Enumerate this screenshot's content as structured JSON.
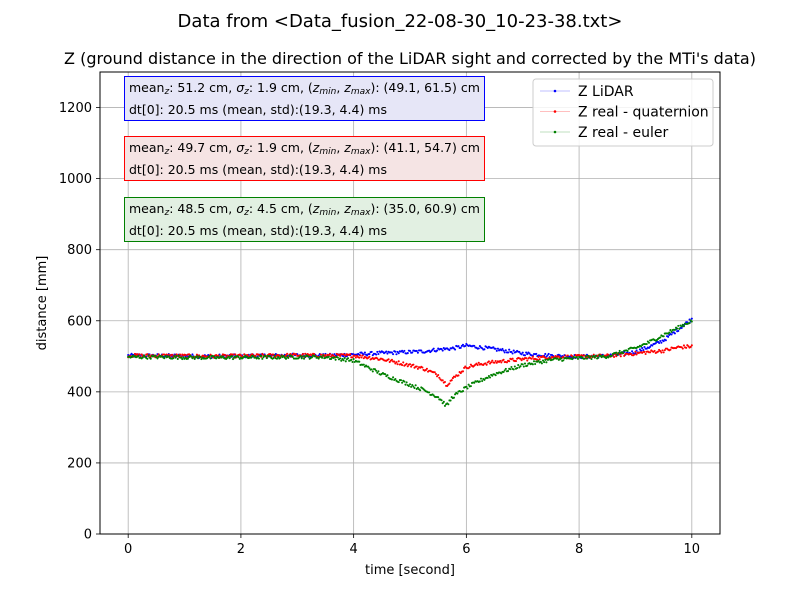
{
  "suptitle": "Data from <Data_fusion_22-08-30_10-23-38.txt>",
  "chart_data": {
    "type": "scatter",
    "title": "Z (ground distance in the direction of the LiDAR sight and corrected by the MTi's data)",
    "xlabel": "time [second]",
    "ylabel": "distance [mm]",
    "xlim": [
      -0.5,
      10.5
    ],
    "ylim": [
      0,
      1300
    ],
    "xticks": [
      0,
      2,
      4,
      6,
      8,
      10
    ],
    "yticks": [
      0,
      200,
      400,
      600,
      800,
      1000,
      1200
    ],
    "grid": true,
    "legend_position": "top-right",
    "series": [
      {
        "name": "Z LiDAR",
        "color": "#0000ff",
        "x": [
          0,
          0.5,
          1,
          1.5,
          2,
          2.5,
          3,
          3.5,
          4,
          4.5,
          5,
          5.25,
          5.5,
          5.75,
          6,
          6.25,
          6.5,
          7,
          7.5,
          8,
          8.5,
          9,
          9.25,
          9.5,
          9.75,
          10
        ],
        "y": [
          502,
          502,
          501,
          500,
          501,
          502,
          503,
          502,
          505,
          509,
          512,
          514,
          519,
          522,
          530,
          525,
          520,
          508,
          502,
          499,
          501,
          512,
          527,
          545,
          575,
          605
        ]
      },
      {
        "name": "Z real - quaternion",
        "color": "#ff0000",
        "x": [
          0,
          0.5,
          1,
          1.5,
          2,
          2.5,
          3,
          3.5,
          4,
          4.5,
          5,
          5.25,
          5.5,
          5.65,
          5.75,
          6,
          6.25,
          6.5,
          7,
          7.5,
          8,
          8.5,
          9,
          9.25,
          9.5,
          9.75,
          10
        ],
        "y": [
          502,
          502,
          501,
          500,
          501,
          502,
          503,
          502,
          502,
          492,
          475,
          465,
          447,
          420,
          435,
          470,
          478,
          484,
          492,
          498,
          499,
          501,
          508,
          512,
          516,
          525,
          528
        ]
      },
      {
        "name": "Z real - euler",
        "color": "#008000",
        "x": [
          0,
          0.5,
          1,
          1.5,
          2,
          2.5,
          3,
          3.5,
          4,
          4.5,
          5,
          5.25,
          5.5,
          5.65,
          5.75,
          6,
          6.25,
          6.5,
          7,
          7.5,
          8,
          8.5,
          9,
          9.25,
          9.5,
          9.75,
          10
        ],
        "y": [
          498,
          498,
          497,
          496,
          497,
          497,
          498,
          498,
          488,
          450,
          420,
          405,
          385,
          360,
          385,
          412,
          432,
          450,
          475,
          490,
          495,
          500,
          523,
          540,
          560,
          580,
          600
        ]
      }
    ]
  },
  "stat_boxes": [
    {
      "mean_value": "51.2 cm",
      "sigma_value": "1.9 cm",
      "range_value": "(49.1, 61.5) cm",
      "dt_line": "dt[0]: 20.5 ms (mean, std):(19.3, 4.4) ms",
      "border_color": "#0000ff",
      "fill_color": "#e6e6f7"
    },
    {
      "mean_value": "49.7 cm",
      "sigma_value": "1.9 cm",
      "range_value": "(41.1, 54.7) cm",
      "dt_line": "dt[0]: 20.5 ms (mean, std):(19.3, 4.4) ms",
      "border_color": "#ff0000",
      "fill_color": "#f5e4e4"
    },
    {
      "mean_value": "48.5 cm",
      "sigma_value": "4.5 cm",
      "range_value": "(35.0, 60.9) cm",
      "dt_line": "dt[0]: 20.5 ms (mean, std):(19.3, 4.4) ms",
      "border_color": "#008000",
      "fill_color": "#e2f0e2"
    }
  ]
}
